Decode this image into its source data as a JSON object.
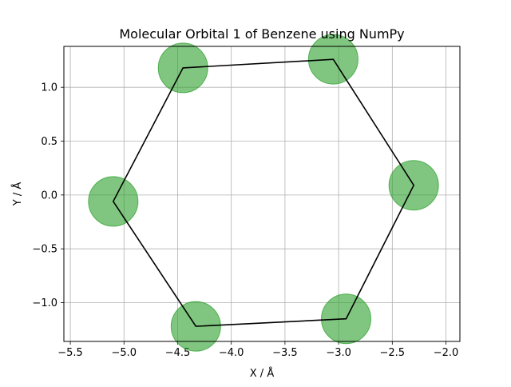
{
  "chart_data": {
    "type": "scatter",
    "title": "Molecular Orbital 1 of Benzene using NumPy",
    "xlabel": "X / Å",
    "ylabel": "Y / Å",
    "xlim": [
      -5.56,
      -1.87
    ],
    "ylim": [
      -1.36,
      1.38
    ],
    "grid": true,
    "legend": "none",
    "x_ticks": [
      {
        "value": -5.5,
        "label": "−5.5"
      },
      {
        "value": -5.0,
        "label": "−5.0"
      },
      {
        "value": -4.5,
        "label": "−4.5"
      },
      {
        "value": -4.0,
        "label": "−4.0"
      },
      {
        "value": -3.5,
        "label": "−3.5"
      },
      {
        "value": -3.0,
        "label": "−3.0"
      },
      {
        "value": -2.5,
        "label": "−2.5"
      },
      {
        "value": -2.0,
        "label": "−2.0"
      }
    ],
    "y_ticks": [
      {
        "value": -1.0,
        "label": "−1.0"
      },
      {
        "value": -0.5,
        "label": "−0.5"
      },
      {
        "value": 0.0,
        "label": "0.0"
      },
      {
        "value": 0.5,
        "label": "0.5"
      },
      {
        "value": 1.0,
        "label": "1.0"
      }
    ],
    "ring": {
      "color": "#000000",
      "points": [
        {
          "x": -4.45,
          "y": 1.18
        },
        {
          "x": -3.05,
          "y": 1.26
        },
        {
          "x": -2.3,
          "y": 0.09
        },
        {
          "x": -2.93,
          "y": -1.15
        },
        {
          "x": -4.33,
          "y": -1.22
        },
        {
          "x": -5.1,
          "y": -0.06
        }
      ]
    },
    "orbitals": {
      "color": "#2ca02c",
      "opacity": 0.6,
      "points": [
        {
          "x": -4.45,
          "y": 1.18
        },
        {
          "x": -3.05,
          "y": 1.26
        },
        {
          "x": -2.3,
          "y": 0.09
        },
        {
          "x": -2.93,
          "y": -1.15
        },
        {
          "x": -4.33,
          "y": -1.22
        },
        {
          "x": -5.1,
          "y": -0.06
        }
      ]
    }
  }
}
